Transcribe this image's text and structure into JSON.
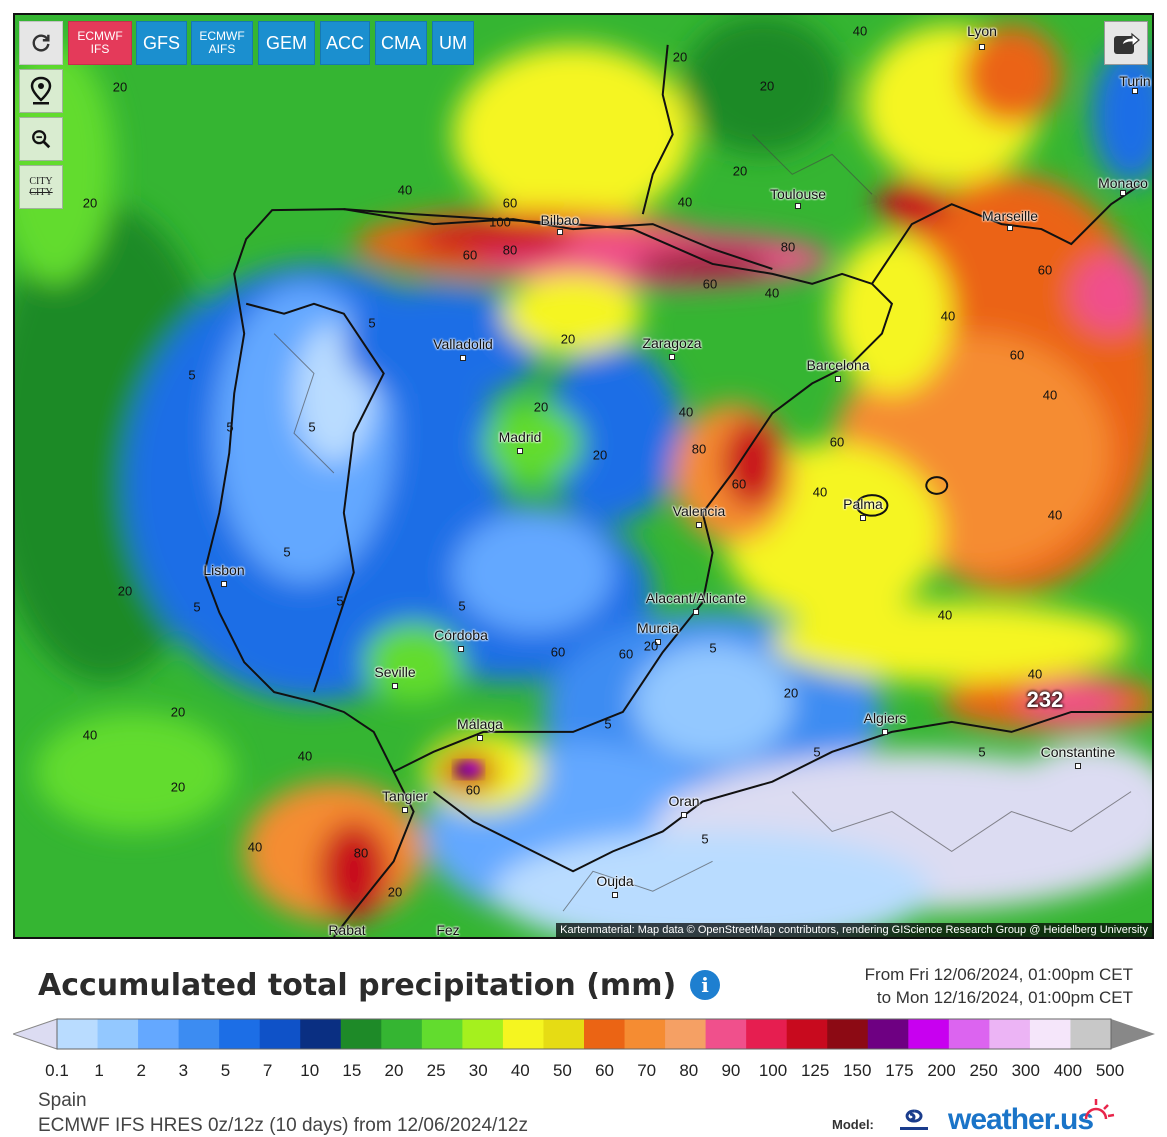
{
  "toolbar": {
    "refresh_icon": "refresh-icon",
    "models": [
      {
        "label": "ECMWF\nIFS",
        "active": true
      },
      {
        "label": "GFS",
        "active": false
      },
      {
        "label": "ECMWF\nAIFS",
        "active": false
      },
      {
        "label": "GEM",
        "active": false
      },
      {
        "label": "ACC",
        "active": false
      },
      {
        "label": "CMA",
        "active": false
      },
      {
        "label": "UM",
        "active": false
      }
    ],
    "active_color": "#e43a5a",
    "model_color": "#1b8fcf"
  },
  "side_buttons": {
    "location_icon": "map-pin-icon",
    "zoom_icon": "zoom-out-icon",
    "city_toggle_top": "CITY",
    "city_toggle_bottom": "CITY"
  },
  "share_icon": "share-icon",
  "cities": [
    {
      "name": "Lyon"
    },
    {
      "name": "Turin"
    },
    {
      "name": "Monaco"
    },
    {
      "name": "Toulouse"
    },
    {
      "name": "Marseille"
    },
    {
      "name": "Bilbao"
    },
    {
      "name": "Valladolid"
    },
    {
      "name": "Zaragoza"
    },
    {
      "name": "Barcelona"
    },
    {
      "name": "Madrid"
    },
    {
      "name": "Palma"
    },
    {
      "name": "Valencia"
    },
    {
      "name": "Lisbon"
    },
    {
      "name": "Alacant/Alicante"
    },
    {
      "name": "Murcia"
    },
    {
      "name": "Córdoba"
    },
    {
      "name": "Seville"
    },
    {
      "name": "Algiers"
    },
    {
      "name": "Málaga"
    },
    {
      "name": "Constantine"
    },
    {
      "name": "Tangier"
    },
    {
      "name": "Oran"
    },
    {
      "name": "Oujda"
    },
    {
      "name": "Rabat"
    },
    {
      "name": "Fez"
    }
  ],
  "contour_labels": [
    "40",
    "20",
    "20",
    "40",
    "60",
    "100",
    "80",
    "60",
    "20",
    "20",
    "40",
    "20",
    "80",
    "60",
    "40",
    "60",
    "40",
    "20",
    "60",
    "40",
    "5",
    "5",
    "5",
    "5",
    "20",
    "40",
    "80",
    "60",
    "60",
    "20",
    "40",
    "5",
    "5",
    "5",
    "20",
    "40",
    "5",
    "20",
    "60",
    "60",
    "40",
    "5",
    "40",
    "20",
    "20",
    "5",
    "5",
    "5",
    "40",
    "5",
    "60",
    "80",
    "20",
    "20",
    "40",
    "40"
  ],
  "max_value": "232",
  "attribution": "Kartenmaterial: Map data © OpenStreetMap contributors, rendering GIScience Research Group @ Heidelberg University",
  "legend": {
    "title": "Accumulated total precipitation (mm)",
    "info_icon": "info-icon",
    "period_from": "From Fri 12/06/2024, 01:00pm CET",
    "period_to": "to Mon 12/16/2024, 01:00pm CET",
    "ticks": [
      "0.1",
      "1",
      "2",
      "3",
      "5",
      "7",
      "10",
      "15",
      "20",
      "25",
      "30",
      "40",
      "50",
      "60",
      "70",
      "80",
      "90",
      "100",
      "125",
      "150",
      "175",
      "200",
      "250",
      "300",
      "400",
      "500"
    ],
    "colors": [
      "#dcdcf2",
      "#b9dcff",
      "#93c8ff",
      "#64a8ff",
      "#3c8cf2",
      "#1c6ee6",
      "#0f52c8",
      "#0a2f82",
      "#1e8a28",
      "#35b532",
      "#62dc2e",
      "#a5f01e",
      "#f5f520",
      "#e6dc14",
      "#eb6414",
      "#f58c32",
      "#f5a064",
      "#f0508c",
      "#e61e50",
      "#c80a1e",
      "#8c0a14",
      "#6e0082",
      "#c800f0",
      "#dc64f0",
      "#ecb4f5",
      "#f5e6fa",
      "#c8c8c8"
    ]
  },
  "region": "Spain",
  "run_info": "ECMWF IFS HRES 0z/12z (10 days) from 12/06/2024/12z",
  "branding": {
    "model_label": "Model:",
    "site": "weather.us"
  }
}
